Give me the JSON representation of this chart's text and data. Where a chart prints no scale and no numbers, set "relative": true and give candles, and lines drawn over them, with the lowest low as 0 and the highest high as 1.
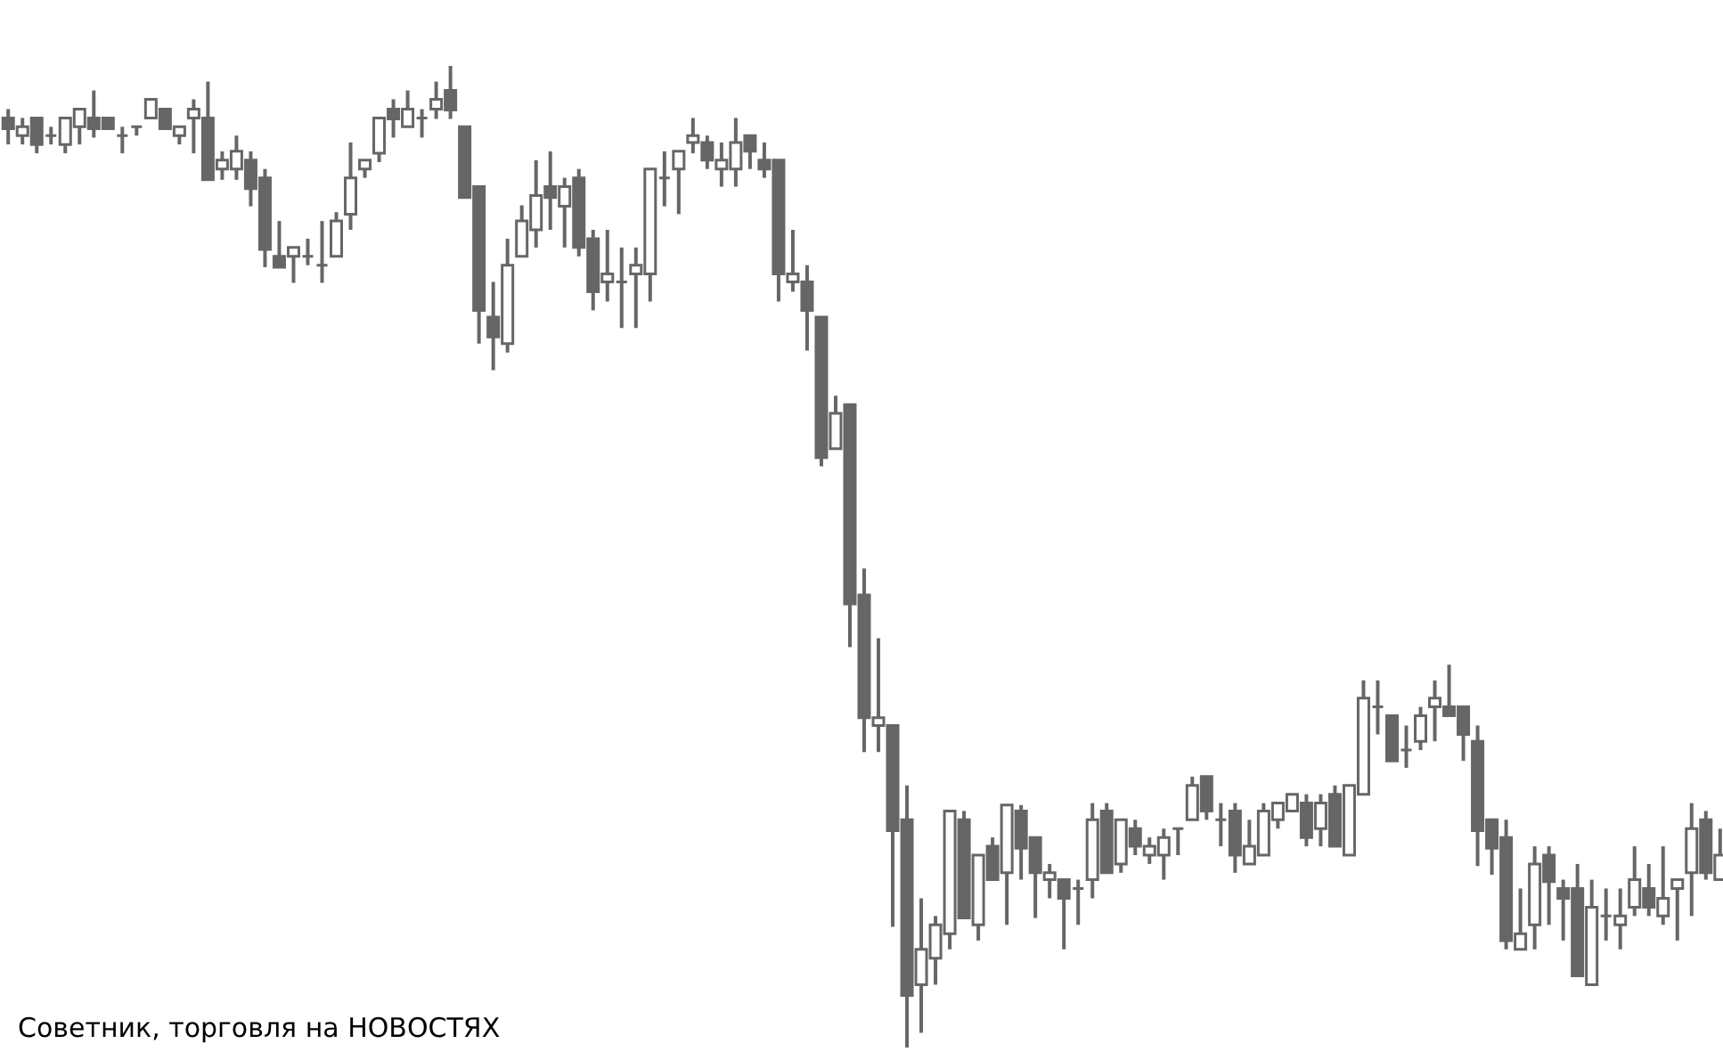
{
  "chart_data": {
    "type": "candlestick",
    "relative": true,
    "color": "#666666",
    "categories": [
      null,
      null,
      null,
      null,
      null,
      null,
      null,
      null,
      null,
      null,
      null,
      null,
      null,
      null,
      null,
      null,
      null,
      null,
      null,
      null,
      null,
      null,
      null,
      null,
      null,
      null,
      null,
      null,
      null,
      null,
      null,
      null,
      null,
      null,
      null,
      null,
      null,
      null,
      null,
      null,
      null,
      null,
      null,
      null,
      null,
      null,
      null,
      null,
      null,
      null,
      null,
      null,
      null,
      null,
      null,
      null,
      null,
      null,
      null,
      null,
      null,
      null,
      null,
      null,
      null,
      null,
      null,
      null,
      null,
      null,
      null,
      null,
      null,
      null,
      null,
      null,
      null,
      null,
      null,
      null,
      null,
      null,
      null,
      null,
      null,
      null,
      null,
      null,
      null,
      null,
      null,
      null,
      null,
      null,
      null,
      null,
      null,
      null,
      null,
      null,
      null,
      null,
      null,
      null,
      null,
      null,
      null,
      null,
      null,
      null,
      null,
      null,
      null,
      null,
      null,
      null,
      null,
      null,
      null,
      null,
      null
    ],
    "ohlc": [
      [
        0.947,
        0.956,
        0.92,
        0.936
      ],
      [
        0.929,
        0.947,
        0.92,
        0.938
      ],
      [
        0.947,
        0.947,
        0.911,
        0.92
      ],
      [
        0.929,
        0.938,
        0.92,
        0.929
      ],
      [
        0.92,
        0.947,
        0.911,
        0.947
      ],
      [
        0.938,
        0.956,
        0.92,
        0.956
      ],
      [
        0.947,
        0.975,
        0.927,
        0.936
      ],
      [
        0.947,
        0.947,
        0.936,
        0.936
      ],
      [
        0.929,
        0.938,
        0.911,
        0.929
      ],
      [
        0.938,
        0.938,
        0.929,
        0.938
      ],
      [
        0.947,
        0.966,
        0.947,
        0.966
      ],
      [
        0.956,
        0.956,
        0.936,
        0.936
      ],
      [
        0.929,
        0.938,
        0.92,
        0.938
      ],
      [
        0.947,
        0.966,
        0.911,
        0.956
      ],
      [
        0.947,
        0.984,
        0.884,
        0.884
      ],
      [
        0.895,
        0.913,
        0.884,
        0.904
      ],
      [
        0.895,
        0.929,
        0.884,
        0.913
      ],
      [
        0.904,
        0.913,
        0.857,
        0.875
      ],
      [
        0.886,
        0.895,
        0.795,
        0.813
      ],
      [
        0.806,
        0.842,
        0.795,
        0.795
      ],
      [
        0.806,
        0.815,
        0.779,
        0.815
      ],
      [
        0.806,
        0.824,
        0.797,
        0.806
      ],
      [
        0.797,
        0.842,
        0.779,
        0.797
      ],
      [
        0.806,
        0.851,
        0.806,
        0.842
      ],
      [
        0.849,
        0.922,
        0.833,
        0.886
      ],
      [
        0.895,
        0.904,
        0.886,
        0.904
      ],
      [
        0.911,
        0.947,
        0.902,
        0.947
      ],
      [
        0.956,
        0.966,
        0.927,
        0.946
      ],
      [
        0.938,
        0.975,
        0.938,
        0.956
      ],
      [
        0.947,
        0.956,
        0.927,
        0.947
      ],
      [
        0.956,
        0.984,
        0.946,
        0.966
      ],
      [
        0.975,
        1.0,
        0.946,
        0.955
      ],
      [
        0.938,
        0.938,
        0.866,
        0.866
      ],
      [
        0.877,
        0.877,
        0.717,
        0.751
      ],
      [
        0.744,
        0.78,
        0.69,
        0.724
      ],
      [
        0.717,
        0.824,
        0.708,
        0.797
      ],
      [
        0.806,
        0.858,
        0.806,
        0.842
      ],
      [
        0.833,
        0.904,
        0.815,
        0.868
      ],
      [
        0.877,
        0.913,
        0.833,
        0.866
      ],
      [
        0.857,
        0.886,
        0.815,
        0.877
      ],
      [
        0.886,
        0.895,
        0.806,
        0.815
      ],
      [
        0.824,
        0.833,
        0.751,
        0.77
      ],
      [
        0.78,
        0.833,
        0.76,
        0.788
      ],
      [
        0.78,
        0.815,
        0.733,
        0.78
      ],
      [
        0.788,
        0.815,
        0.733,
        0.797
      ],
      [
        0.788,
        0.895,
        0.76,
        0.895
      ],
      [
        0.886,
        0.913,
        0.857,
        0.886
      ],
      [
        0.895,
        0.913,
        0.849,
        0.913
      ],
      [
        0.922,
        0.947,
        0.911,
        0.929
      ],
      [
        0.922,
        0.929,
        0.895,
        0.904
      ],
      [
        0.895,
        0.922,
        0.877,
        0.904
      ],
      [
        0.895,
        0.947,
        0.877,
        0.922
      ],
      [
        0.929,
        0.929,
        0.895,
        0.913
      ],
      [
        0.904,
        0.922,
        0.886,
        0.895
      ],
      [
        0.904,
        0.904,
        0.76,
        0.788
      ],
      [
        0.78,
        0.833,
        0.77,
        0.788
      ],
      [
        0.78,
        0.797,
        0.71,
        0.751
      ],
      [
        0.744,
        0.744,
        0.592,
        0.601
      ],
      [
        0.61,
        0.664,
        0.61,
        0.646
      ],
      [
        0.655,
        0.655,
        0.408,
        0.452
      ],
      [
        0.461,
        0.488,
        0.301,
        0.336
      ],
      [
        0.328,
        0.417,
        0.301,
        0.336
      ],
      [
        0.328,
        0.328,
        0.123,
        0.221
      ],
      [
        0.232,
        0.267,
        0.0,
        0.053
      ],
      [
        0.064,
        0.152,
        0.015,
        0.1
      ],
      [
        0.091,
        0.134,
        0.064,
        0.125
      ],
      [
        0.116,
        0.241,
        0.1,
        0.241
      ],
      [
        0.232,
        0.241,
        0.132,
        0.132
      ],
      [
        0.125,
        0.196,
        0.109,
        0.196
      ],
      [
        0.205,
        0.214,
        0.171,
        0.171
      ],
      [
        0.178,
        0.247,
        0.125,
        0.247
      ],
      [
        0.241,
        0.247,
        0.171,
        0.203
      ],
      [
        0.214,
        0.214,
        0.132,
        0.178
      ],
      [
        0.171,
        0.187,
        0.152,
        0.178
      ],
      [
        0.171,
        0.171,
        0.1,
        0.152
      ],
      [
        0.162,
        0.171,
        0.125,
        0.162
      ],
      [
        0.171,
        0.249,
        0.152,
        0.232
      ],
      [
        0.241,
        0.249,
        0.178,
        0.178
      ],
      [
        0.187,
        0.232,
        0.178,
        0.232
      ],
      [
        0.223,
        0.232,
        0.196,
        0.205
      ],
      [
        0.196,
        0.214,
        0.187,
        0.205
      ],
      [
        0.196,
        0.223,
        0.171,
        0.214
      ],
      [
        0.223,
        0.223,
        0.196,
        0.223
      ],
      [
        0.232,
        0.276,
        0.232,
        0.267
      ],
      [
        0.276,
        0.276,
        0.232,
        0.241
      ],
      [
        0.232,
        0.249,
        0.205,
        0.232
      ],
      [
        0.241,
        0.249,
        0.178,
        0.196
      ],
      [
        0.187,
        0.232,
        0.187,
        0.205
      ],
      [
        0.196,
        0.249,
        0.196,
        0.241
      ],
      [
        0.232,
        0.249,
        0.223,
        0.249
      ],
      [
        0.241,
        0.258,
        0.241,
        0.258
      ],
      [
        0.249,
        0.258,
        0.205,
        0.214
      ],
      [
        0.223,
        0.258,
        0.205,
        0.249
      ],
      [
        0.258,
        0.267,
        0.205,
        0.205
      ],
      [
        0.196,
        0.267,
        0.196,
        0.267
      ],
      [
        0.258,
        0.374,
        0.258,
        0.356
      ],
      [
        0.347,
        0.374,
        0.319,
        0.347
      ],
      [
        0.338,
        0.338,
        0.292,
        0.292
      ],
      [
        0.303,
        0.328,
        0.285,
        0.303
      ],
      [
        0.312,
        0.347,
        0.303,
        0.338
      ],
      [
        0.347,
        0.374,
        0.312,
        0.356
      ],
      [
        0.347,
        0.39,
        0.338,
        0.338
      ],
      [
        0.347,
        0.347,
        0.292,
        0.319
      ],
      [
        0.312,
        0.328,
        0.185,
        0.221
      ],
      [
        0.232,
        0.232,
        0.176,
        0.203
      ],
      [
        0.214,
        0.232,
        0.1,
        0.109
      ],
      [
        0.1,
        0.162,
        0.1,
        0.116
      ],
      [
        0.125,
        0.205,
        0.1,
        0.187
      ],
      [
        0.196,
        0.205,
        0.125,
        0.169
      ],
      [
        0.162,
        0.171,
        0.109,
        0.152
      ],
      [
        0.162,
        0.187,
        0.073,
        0.073
      ],
      [
        0.064,
        0.171,
        0.064,
        0.143
      ],
      [
        0.134,
        0.162,
        0.109,
        0.134
      ],
      [
        0.125,
        0.162,
        0.1,
        0.134
      ],
      [
        0.143,
        0.205,
        0.134,
        0.171
      ],
      [
        0.162,
        0.187,
        0.134,
        0.143
      ],
      [
        0.134,
        0.205,
        0.125,
        0.152
      ],
      [
        0.162,
        0.171,
        0.109,
        0.171
      ],
      [
        0.178,
        0.249,
        0.134,
        0.223
      ],
      [
        0.232,
        0.241,
        0.171,
        0.178
      ],
      [
        0.171,
        0.223,
        0.171,
        0.196
      ]
    ],
    "annotations": [
      "Советник, торговля на НОВОСТЯХ"
    ]
  }
}
